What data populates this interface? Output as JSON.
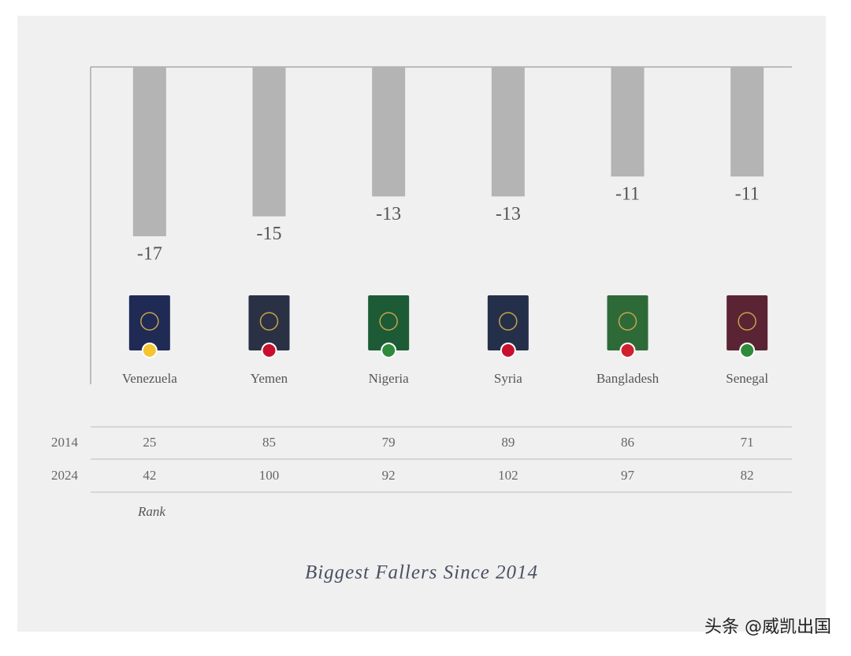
{
  "chart_data": {
    "type": "bar",
    "title": "Biggest Fallers Since 2014",
    "categories": [
      "Venezuela",
      "Yemen",
      "Nigeria",
      "Syria",
      "Bangladesh",
      "Senegal"
    ],
    "values": [
      -17,
      -15,
      -13,
      -13,
      -11,
      -11
    ],
    "color": "#b4b4b4",
    "ylim": [
      -17,
      0
    ],
    "passport_colors": [
      "#1f2a55",
      "#2a3145",
      "#1c5b36",
      "#243049",
      "#2e6a38",
      "#5a2434"
    ],
    "flag_colors": [
      "#f4c531",
      "#c8102e",
      "#2e8b3c",
      "#c8102e",
      "#d0202f",
      "#2e8b3c"
    ],
    "table": {
      "rows": [
        {
          "label": "2014",
          "values": [
            25,
            85,
            79,
            89,
            86,
            71
          ]
        },
        {
          "label": "2024",
          "values": [
            42,
            100,
            92,
            102,
            97,
            82
          ]
        }
      ],
      "note": "Rank"
    }
  },
  "watermark": "头条 @威凯出国"
}
